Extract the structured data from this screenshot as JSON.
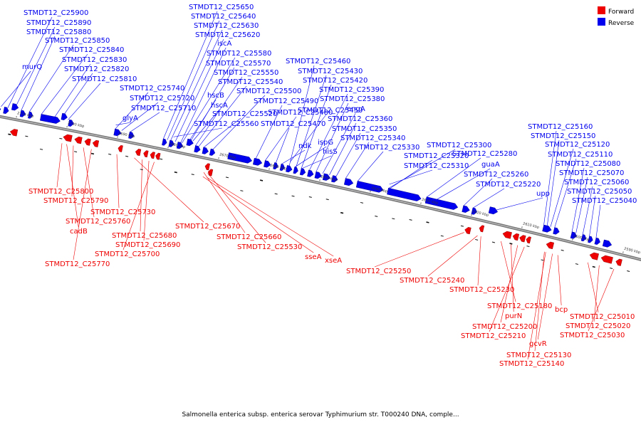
{
  "legend": {
    "forward": {
      "label": "Forward",
      "color": "#ee0000"
    },
    "reverse": {
      "label": "Reverse",
      "color": "#0000ee"
    }
  },
  "axis": {
    "start_kbp": 2718,
    "end_kbp": 2588,
    "ticks": [
      "2710 kbp",
      "2700 kbp",
      "2690 kbp",
      "2680 kbp",
      "2670 kbp",
      "2660 kbp",
      "2650 kbp",
      "2640 kbp",
      "2630 kbp",
      "2620 kbp",
      "2610 kbp",
      "2600 kbp",
      "2590 kbp"
    ]
  },
  "reverse_labels": [
    "STMDT12_C25900",
    "STMDT12_C25890",
    "STMDT12_C25880",
    "STMDT12_C25850",
    "STMDT12_C25840",
    "STMDT12_C25830",
    "murQ",
    "STMDT12_C25820",
    "STMDT12_C25810",
    "STMDT12_C25740",
    "STMDT12_C25720",
    "STMDT12_C25710",
    "glyA",
    "STMDT12_C25650",
    "STMDT12_C25640",
    "STMDT12_C25630",
    "STMDT12_C25620",
    "iscA",
    "STMDT12_C25580",
    "STMDT12_C25570",
    "STMDT12_C25550",
    "STMDT12_C25540",
    "hscB",
    "hscA",
    "STMDT12_C25520",
    "STMDT12_C25560",
    "STMDT12_C25500",
    "STMDT12_C25490",
    "STMDT12_C25480",
    "STMDT12_C25470",
    "ndk",
    "STMDT12_C25460",
    "STMDT12_C25430",
    "STMDT12_C25420",
    "STMDT12_C25390",
    "STMDT12_C25380",
    "STMDT12_C25450",
    "engA",
    "ispG",
    "hisS",
    "STMDT12_C25360",
    "STMDT12_C25350",
    "STMDT12_C25340",
    "STMDT12_C25330",
    "STMDT12_C25300",
    "STMDT12_C25320",
    "STMDT12_C25310",
    "STMDT12_C25280",
    "guaA",
    "STMDT12_C25260",
    "STMDT12_C25220",
    "STMDT12_C25160",
    "STMDT12_C25150",
    "STMDT12_C25120",
    "STMDT12_C25110",
    "STMDT12_C25080",
    "STMDT12_C25070",
    "STMDT12_C25060",
    "STMDT12_C25050",
    "upp",
    "STMDT12_C25040"
  ],
  "forward_labels": [
    "STMDT12_C25800",
    "STMDT12_C25790",
    "STMDT12_C25730",
    "STMDT12_C25760",
    "cadB",
    "STMDT12_C25680",
    "STMDT12_C25690",
    "STMDT12_C25700",
    "STMDT12_C25770",
    "STMDT12_C25670",
    "STMDT12_C25660",
    "STMDT12_C25530",
    "sseA",
    "xseA",
    "STMDT12_C25250",
    "STMDT12_C25240",
    "STMDT12_C25230",
    "STMDT12_C25180",
    "purN",
    "STMDT12_C25200",
    "STMDT12_C25210",
    "STMDT12_C25130",
    "STMDT12_C25140",
    "gcvR",
    "bcp",
    "STMDT12_C25010",
    "STMDT12_C25020",
    "STMDT12_C25030"
  ],
  "caption": "Salmonella enterica subsp. enterica serovar Typhimurium str. T000240 DNA, comple..."
}
